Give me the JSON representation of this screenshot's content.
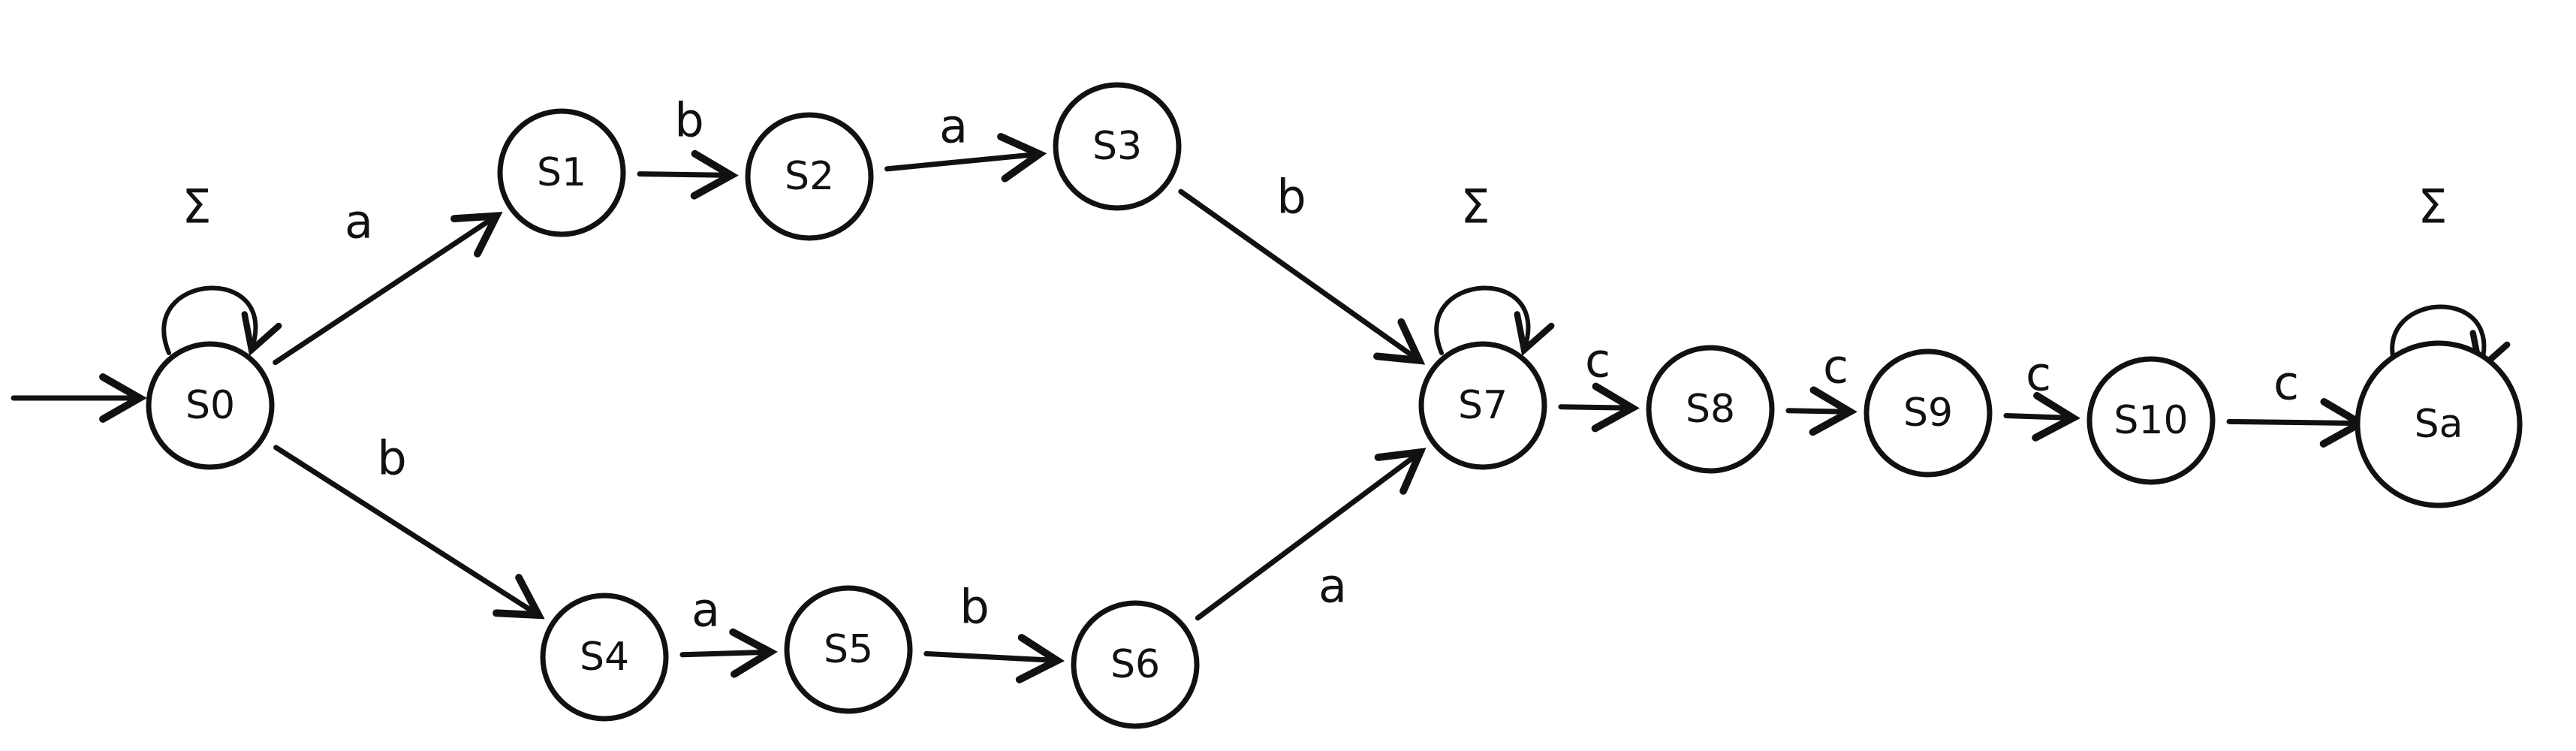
{
  "diagram": {
    "type": "finite-automaton",
    "states": [
      {
        "id": "s0",
        "label": "S0",
        "sub": "0"
      },
      {
        "id": "s1",
        "label": "S1",
        "sub": "1"
      },
      {
        "id": "s2",
        "label": "S2",
        "sub": "2"
      },
      {
        "id": "s3",
        "label": "S3",
        "sub": "3"
      },
      {
        "id": "s4",
        "label": "S4",
        "sub": "4"
      },
      {
        "id": "s5",
        "label": "S5",
        "sub": "5"
      },
      {
        "id": "s6",
        "label": "S6",
        "sub": "6"
      },
      {
        "id": "s7",
        "label": "S7",
        "sub": "7"
      },
      {
        "id": "s8",
        "label": "S8",
        "sub": "8"
      },
      {
        "id": "s9",
        "label": "S9",
        "sub": "9"
      },
      {
        "id": "s10",
        "label": "S10",
        "sub": "10"
      },
      {
        "id": "sa",
        "label": "Sa",
        "sub": "a"
      }
    ],
    "start_state": "s0",
    "accept_states": [
      "sa"
    ],
    "transitions": [
      {
        "from": "s0",
        "to": "s0",
        "label": "Σ"
      },
      {
        "from": "s0",
        "to": "s1",
        "label": "a"
      },
      {
        "from": "s1",
        "to": "s2",
        "label": "b"
      },
      {
        "from": "s2",
        "to": "s3",
        "label": "a"
      },
      {
        "from": "s3",
        "to": "s7",
        "label": "b"
      },
      {
        "from": "s0",
        "to": "s4",
        "label": "b"
      },
      {
        "from": "s4",
        "to": "s5",
        "label": "a"
      },
      {
        "from": "s5",
        "to": "s6",
        "label": "b"
      },
      {
        "from": "s6",
        "to": "s7",
        "label": "a"
      },
      {
        "from": "s7",
        "to": "s7",
        "label": "Σ"
      },
      {
        "from": "s7",
        "to": "s8",
        "label": "c"
      },
      {
        "from": "s8",
        "to": "s9",
        "label": "c"
      },
      {
        "from": "s9",
        "to": "s10",
        "label": "c"
      },
      {
        "from": "s10",
        "to": "sa",
        "label": "c"
      },
      {
        "from": "sa",
        "to": "sa",
        "label": "Σ"
      }
    ]
  }
}
